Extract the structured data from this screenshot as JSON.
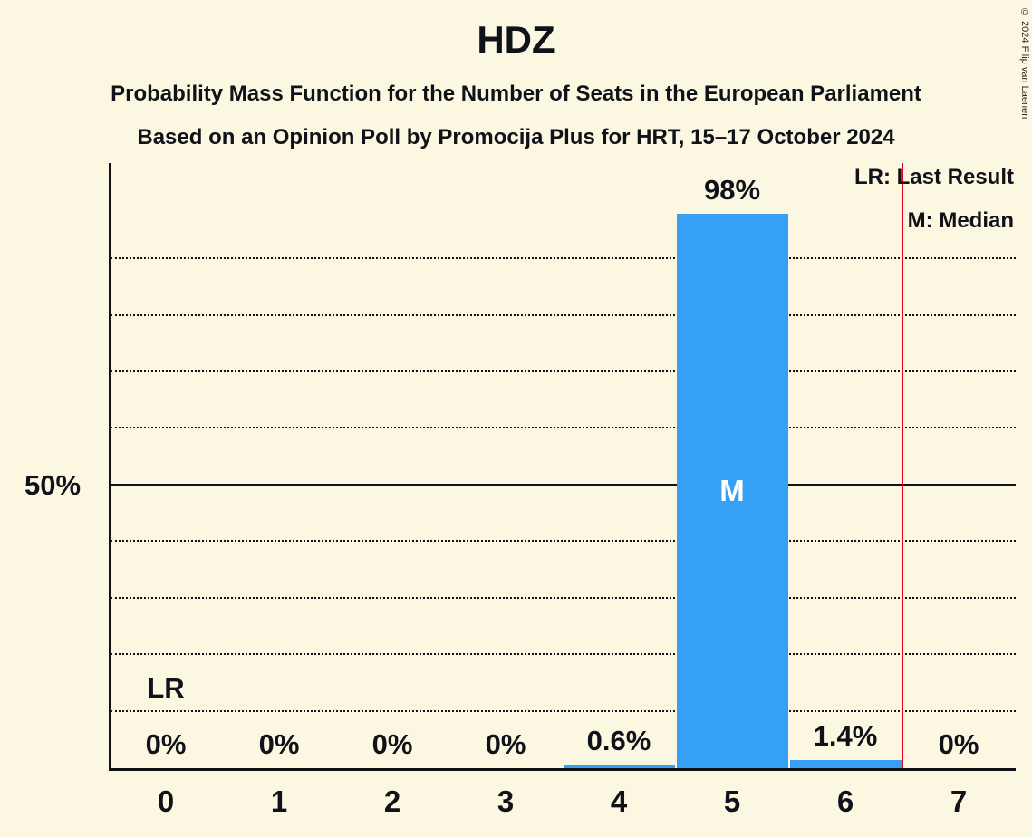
{
  "title": "HDZ",
  "subtitle1": "Probability Mass Function for the Number of Seats in the European Parliament",
  "subtitle2": "Based on an Opinion Poll by Promocija Plus for HRT, 15–17 October 2024",
  "copyright": "© 2024 Filip van Laenen",
  "legend": {
    "lr": "LR: Last Result",
    "m": "M: Median"
  },
  "y_axis": {
    "tick_label": "50%",
    "tick_value": 50
  },
  "annotations": {
    "lr_label": "LR",
    "lr_column": 0,
    "median_label": "M",
    "median_column": 5,
    "last_result_line_x": 6.5
  },
  "colors": {
    "background": "#fcf7e0",
    "bar": "#36a0f5",
    "text": "#10121a",
    "last_result_line": "#e8001f"
  },
  "chart_data": {
    "type": "bar",
    "title": "HDZ",
    "xlabel": "",
    "ylabel": "",
    "categories": [
      "0",
      "1",
      "2",
      "3",
      "4",
      "5",
      "6",
      "7"
    ],
    "values": [
      0,
      0,
      0,
      0,
      0.6,
      98,
      1.4,
      0
    ],
    "value_labels": [
      "0%",
      "0%",
      "0%",
      "0%",
      "0.6%",
      "98%",
      "1.4%",
      "0%"
    ],
    "ylim": [
      0,
      107
    ],
    "gridline_solid": 50,
    "gridlines_dotted": [
      10,
      20,
      30,
      40,
      60,
      70,
      80,
      90
    ],
    "grid": "dotted-horizontal",
    "legend_position": "top-right"
  }
}
